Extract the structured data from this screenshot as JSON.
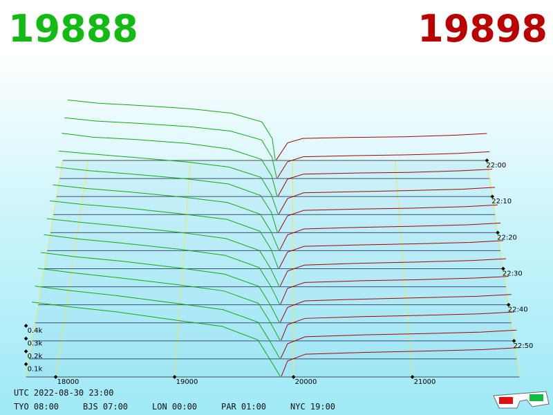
{
  "chart_data": {
    "type": "depth3d",
    "bid_title": "19888",
    "ask_title": "19898",
    "bid_color": "#11aa11",
    "ask_color": "#aa0000",
    "xticks": [
      18000,
      19000,
      20000,
      21000
    ],
    "yticks": [
      {
        "value": 100,
        "label": "0.1k"
      },
      {
        "value": 200,
        "label": "0.2k"
      },
      {
        "value": 300,
        "label": "0.3k"
      },
      {
        "value": 400,
        "label": "0.4k"
      }
    ],
    "time_ticks": [
      "22:00",
      "22:10",
      "22:20",
      "22:30",
      "22:40",
      "22:50"
    ],
    "slices": [
      {
        "time": "22:00",
        "bid_price": [
          17800,
          18100,
          18500,
          19000,
          19400,
          19700,
          19800,
          19830
        ],
        "bid_depth": [
          550,
          520,
          500,
          470,
          430,
          350,
          200,
          5
        ],
        "ask_price": [
          19840,
          19950,
          20100,
          20600,
          21100,
          21600,
          21900
        ],
        "ask_depth": [
          5,
          160,
          200,
          210,
          215,
          230,
          245
        ]
      },
      {
        "time": "22:05",
        "bid_price": [
          17800,
          18100,
          18500,
          19000,
          19400,
          19700,
          19800,
          19845
        ],
        "bid_depth": [
          545,
          515,
          495,
          465,
          425,
          345,
          190,
          5
        ],
        "ask_price": [
          19852,
          19950,
          20100,
          20600,
          21100,
          21600,
          21900
        ],
        "ask_depth": [
          5,
          150,
          195,
          205,
          212,
          225,
          240
        ]
      },
      {
        "time": "22:10",
        "bid_price": [
          17800,
          18100,
          18500,
          19000,
          19400,
          19700,
          19800,
          19850
        ],
        "bid_depth": [
          560,
          525,
          505,
          470,
          420,
          330,
          180,
          5
        ],
        "ask_price": [
          19860,
          19950,
          20100,
          20600,
          21100,
          21600,
          21900
        ],
        "ask_depth": [
          5,
          155,
          198,
          208,
          214,
          228,
          242
        ]
      },
      {
        "time": "22:15",
        "bid_price": [
          17800,
          18100,
          18500,
          19000,
          19400,
          19700,
          19800,
          19860
        ],
        "bid_depth": [
          555,
          530,
          500,
          460,
          415,
          325,
          170,
          5
        ],
        "ask_price": [
          19868,
          19950,
          20100,
          20600,
          21100,
          21600,
          21900
        ],
        "ask_depth": [
          5,
          140,
          190,
          200,
          210,
          222,
          238
        ]
      },
      {
        "time": "22:20",
        "bid_price": [
          17800,
          18100,
          18500,
          19000,
          19400,
          19700,
          19800,
          19855
        ],
        "bid_depth": [
          565,
          535,
          505,
          465,
          420,
          320,
          175,
          5
        ],
        "ask_price": [
          19865,
          19950,
          20100,
          20600,
          21100,
          21600,
          21900
        ],
        "ask_depth": [
          5,
          145,
          192,
          203,
          211,
          224,
          239
        ]
      },
      {
        "time": "22:25",
        "bid_price": [
          17800,
          18100,
          18500,
          19000,
          19400,
          19700,
          19800,
          19870
        ],
        "bid_depth": [
          560,
          530,
          500,
          455,
          410,
          310,
          160,
          5
        ],
        "ask_price": [
          19878,
          19950,
          20100,
          20600,
          21100,
          21600,
          21900
        ],
        "ask_depth": [
          5,
          135,
          185,
          198,
          208,
          220,
          235
        ]
      },
      {
        "time": "22:30",
        "bid_price": [
          17800,
          18100,
          18500,
          19000,
          19400,
          19700,
          19800,
          19865
        ],
        "bid_depth": [
          570,
          540,
          510,
          460,
          415,
          315,
          165,
          5
        ],
        "ask_price": [
          19874,
          19950,
          20100,
          20600,
          21100,
          21600,
          21900
        ],
        "ask_depth": [
          5,
          140,
          188,
          200,
          209,
          221,
          236
        ]
      },
      {
        "time": "22:35",
        "bid_price": [
          17800,
          18100,
          18500,
          19000,
          19400,
          19700,
          19800,
          19875
        ],
        "bid_depth": [
          565,
          535,
          500,
          450,
          400,
          300,
          150,
          5
        ],
        "ask_price": [
          19884,
          19950,
          20100,
          20600,
          21100,
          21600,
          21900
        ],
        "ask_depth": [
          5,
          130,
          180,
          195,
          205,
          218,
          232
        ]
      },
      {
        "time": "22:40",
        "bid_price": [
          17800,
          18100,
          18500,
          19000,
          19400,
          19700,
          19800,
          19880
        ],
        "bid_depth": [
          575,
          540,
          505,
          455,
          405,
          305,
          155,
          5
        ],
        "ask_price": [
          19888,
          19950,
          20100,
          20600,
          21100,
          21600,
          21900
        ],
        "ask_depth": [
          5,
          135,
          183,
          197,
          206,
          219,
          233
        ]
      },
      {
        "time": "22:45",
        "bid_price": [
          17800,
          18100,
          18500,
          19000,
          19400,
          19700,
          19800,
          19878
        ],
        "bid_depth": [
          570,
          535,
          500,
          445,
          395,
          295,
          145,
          5
        ],
        "ask_price": [
          19887,
          19950,
          20100,
          20600,
          21100,
          21600,
          21900
        ],
        "ask_depth": [
          5,
          125,
          178,
          192,
          203,
          215,
          230
        ]
      },
      {
        "time": "22:50",
        "bid_price": [
          17800,
          18100,
          18500,
          19000,
          19400,
          19700,
          19800,
          19885
        ],
        "bid_depth": [
          580,
          545,
          505,
          450,
          400,
          300,
          150,
          5
        ],
        "ask_price": [
          19894,
          19950,
          20100,
          20600,
          21100,
          21600,
          21900
        ],
        "ask_depth": [
          5,
          130,
          180,
          194,
          204,
          216,
          231
        ]
      },
      {
        "time": "22:55",
        "bid_price": [
          17800,
          18100,
          18500,
          19000,
          19400,
          19700,
          19800,
          19883
        ],
        "bid_depth": [
          575,
          540,
          500,
          440,
          390,
          290,
          140,
          5
        ],
        "ask_price": [
          19892,
          19950,
          20100,
          20600,
          21100,
          21600,
          21900
        ],
        "ask_depth": [
          5,
          120,
          175,
          190,
          200,
          212,
          228
        ]
      },
      {
        "time": "23:00",
        "bid_price": [
          17800,
          18100,
          18500,
          19000,
          19400,
          19700,
          19800,
          19888
        ],
        "bid_depth": [
          585,
          550,
          510,
          445,
          395,
          290,
          140,
          5
        ],
        "ask_price": [
          19898,
          19950,
          20100,
          20600,
          21100,
          21600,
          21900
        ],
        "ask_depth": [
          5,
          125,
          178,
          192,
          202,
          214,
          229
        ]
      }
    ],
    "utc": "UTC 2022-08-30 23:00",
    "clocks": [
      "TYO 08:00",
      "BJS 07:00",
      "LON 00:00",
      "PAR 01:00",
      "NYC 19:00"
    ]
  }
}
